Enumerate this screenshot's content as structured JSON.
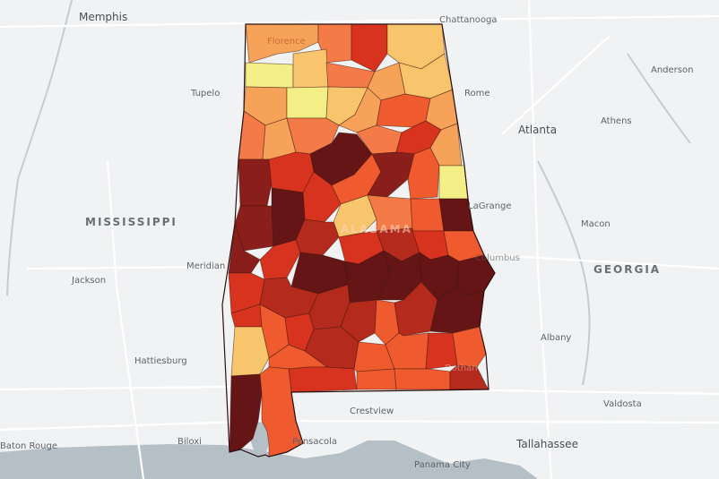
{
  "map": {
    "state_labels": [
      {
        "key": "mississippi",
        "text": "MISSISSIPPI"
      },
      {
        "key": "georgia",
        "text": "GEORGIA"
      },
      {
        "key": "alabama",
        "text": "ALABAMA"
      }
    ],
    "cities": [
      {
        "key": "memphis",
        "text": "Memphis"
      },
      {
        "key": "chattanooga",
        "text": "Chattanooga"
      },
      {
        "key": "tupelo",
        "text": "Tupelo"
      },
      {
        "key": "rome",
        "text": "Rome"
      },
      {
        "key": "atlanta",
        "text": "Atlanta"
      },
      {
        "key": "athens",
        "text": "Athens"
      },
      {
        "key": "anderson",
        "text": "Anderson"
      },
      {
        "key": "lagrange",
        "text": "LaGrange"
      },
      {
        "key": "columbus",
        "text": "Columbus"
      },
      {
        "key": "macon",
        "text": "Macon"
      },
      {
        "key": "jackson",
        "text": "Jackson"
      },
      {
        "key": "meridian",
        "text": "Meridian"
      },
      {
        "key": "hattiesburg",
        "text": "Hattiesburg"
      },
      {
        "key": "albany",
        "text": "Albany"
      },
      {
        "key": "valdosta",
        "text": "Valdosta"
      },
      {
        "key": "crestview",
        "text": "Crestview"
      },
      {
        "key": "tallahassee",
        "text": "Tallahassee"
      },
      {
        "key": "biloxi",
        "text": "Biloxi"
      },
      {
        "key": "pensacola",
        "text": "Pensacola"
      },
      {
        "key": "panama_city",
        "text": "Panama City"
      },
      {
        "key": "baton_rouge",
        "text": "Baton Rouge"
      },
      {
        "key": "dothan",
        "text": "Dothan"
      },
      {
        "key": "florence",
        "text": "Florence"
      }
    ],
    "palette": {
      "c1": "#f3ef86",
      "c2": "#f8c46c",
      "c3": "#f7a259",
      "c4": "#f47a47",
      "c5": "#ef5a2e",
      "c6": "#d8331f",
      "c7": "#b42a1c",
      "c8": "#8a1e1a",
      "c9": "#651515",
      "land": "#f1f2f3",
      "water": "#b5bfc6",
      "road": "#ffffff",
      "river": "#c4ccd2"
    }
  }
}
